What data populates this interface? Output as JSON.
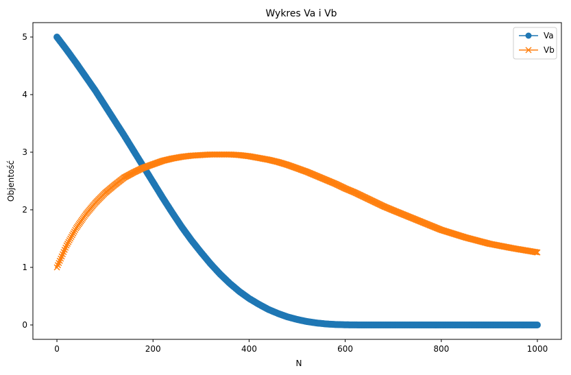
{
  "chart_data": {
    "type": "line",
    "title": "Wykres Va i Vb",
    "xlabel": "N",
    "ylabel": "Objentość",
    "xlim": [
      -50,
      1050
    ],
    "ylim": [
      -0.25,
      5.25
    ],
    "xticks": [
      0,
      200,
      400,
      600,
      800,
      1000
    ],
    "yticks": [
      0,
      1,
      2,
      3,
      4,
      5
    ],
    "grid": false,
    "legend_position": "top-right",
    "series": [
      {
        "name": "Va",
        "color": "#1f77b4",
        "marker": "circle",
        "x": [
          0,
          20,
          40,
          60,
          80,
          100,
          120,
          140,
          160,
          180,
          200,
          220,
          240,
          260,
          280,
          300,
          320,
          340,
          360,
          380,
          400,
          420,
          440,
          460,
          480,
          500,
          520,
          540,
          560,
          580,
          600,
          620,
          640,
          660,
          680,
          700,
          750,
          800,
          850,
          900,
          950,
          1000
        ],
        "values": [
          5.0,
          4.78,
          4.55,
          4.31,
          4.07,
          3.81,
          3.55,
          3.29,
          3.02,
          2.75,
          2.48,
          2.21,
          1.95,
          1.7,
          1.47,
          1.26,
          1.06,
          0.88,
          0.72,
          0.58,
          0.46,
          0.36,
          0.27,
          0.2,
          0.14,
          0.095,
          0.06,
          0.035,
          0.018,
          0.008,
          0.003,
          0.001,
          0.0,
          0.0,
          0.0,
          0.0,
          0.0,
          0.0,
          0.0,
          0.0,
          0.0,
          0.0
        ]
      },
      {
        "name": "Vb",
        "color": "#ff7f0e",
        "marker": "x",
        "x": [
          0,
          20,
          40,
          60,
          80,
          100,
          120,
          140,
          160,
          180,
          200,
          220,
          240,
          260,
          280,
          300,
          320,
          340,
          360,
          380,
          400,
          420,
          440,
          460,
          480,
          500,
          520,
          540,
          560,
          580,
          600,
          620,
          640,
          660,
          680,
          700,
          750,
          800,
          850,
          900,
          950,
          1000
        ],
        "values": [
          1.0,
          1.38,
          1.68,
          1.92,
          2.12,
          2.29,
          2.43,
          2.56,
          2.65,
          2.73,
          2.79,
          2.85,
          2.89,
          2.92,
          2.94,
          2.95,
          2.96,
          2.96,
          2.96,
          2.95,
          2.93,
          2.9,
          2.87,
          2.83,
          2.78,
          2.72,
          2.66,
          2.59,
          2.52,
          2.45,
          2.37,
          2.3,
          2.22,
          2.14,
          2.06,
          1.99,
          1.82,
          1.65,
          1.52,
          1.41,
          1.33,
          1.26
        ]
      }
    ]
  }
}
